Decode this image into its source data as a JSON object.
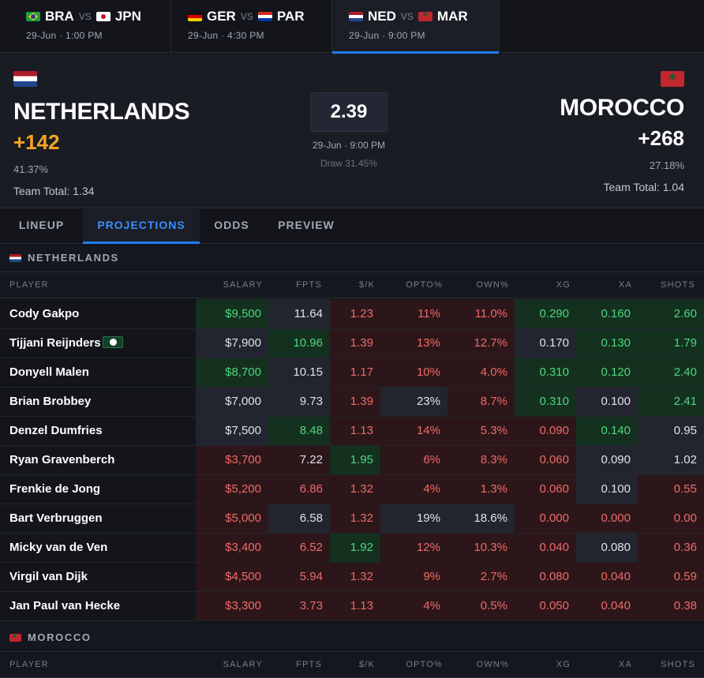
{
  "match_tabs": [
    {
      "home": "BRA",
      "home_flag": "flag-bra",
      "away": "JPN",
      "away_flag": "flag-jpn",
      "vs": "vs",
      "time": "29-Jun · 1:00 PM",
      "active": false
    },
    {
      "home": "GER",
      "home_flag": "flag-ger",
      "away": "PAR",
      "away_flag": "flag-par",
      "vs": "vs",
      "time": "29-Jun · 4:30 PM",
      "active": false
    },
    {
      "home": "NED",
      "home_flag": "flag-ned",
      "away": "MAR",
      "away_flag": "flag-mar",
      "vs": "vs",
      "time": "29-Jun · 9:00 PM",
      "active": true
    }
  ],
  "header": {
    "home": {
      "name": "NETHERLANDS",
      "odds": "+142",
      "pct": "41.37%",
      "team_total": "Team Total: 1.34",
      "odds_color": "#f5a524"
    },
    "away": {
      "name": "MOROCCO",
      "odds": "+268",
      "pct": "27.18%",
      "team_total": "Team Total: 1.04"
    },
    "total": "2.39",
    "time": "29-Jun · 9:00 PM",
    "draw": "Draw 31.45%"
  },
  "tabs": [
    "LINEUP",
    "PROJECTIONS",
    "ODDS",
    "PREVIEW"
  ],
  "active_tab": "PROJECTIONS",
  "sections": {
    "netherlands": "NETHERLANDS",
    "morocco": "MOROCCO"
  },
  "columns": [
    "PLAYER",
    "SALARY",
    "FPTS",
    "$/K",
    "OPTO%",
    "OWN%",
    "XG",
    "XA",
    "SHOTS"
  ],
  "players": [
    {
      "name": "Cody Gakpo",
      "badge": false,
      "salary": "$9,500",
      "fpts": "11.64",
      "pk": "1.23",
      "opto": "11%",
      "own": "11.0%",
      "xg": "0.290",
      "xa": "0.160",
      "shots": "2.60"
    },
    {
      "name": "Tijjani Reijnders",
      "badge": true,
      "salary": "$7,900",
      "fpts": "10.96",
      "pk": "1.39",
      "opto": "13%",
      "own": "12.7%",
      "xg": "0.170",
      "xa": "0.130",
      "shots": "1.79"
    },
    {
      "name": "Donyell Malen",
      "badge": false,
      "salary": "$8,700",
      "fpts": "10.15",
      "pk": "1.17",
      "opto": "10%",
      "own": "4.0%",
      "xg": "0.310",
      "xa": "0.120",
      "shots": "2.40"
    },
    {
      "name": "Brian Brobbey",
      "badge": false,
      "salary": "$7,000",
      "fpts": "9.73",
      "pk": "1.39",
      "opto": "23%",
      "own": "8.7%",
      "xg": "0.310",
      "xa": "0.100",
      "shots": "2.41"
    },
    {
      "name": "Denzel Dumfries",
      "badge": false,
      "salary": "$7,500",
      "fpts": "8.48",
      "pk": "1.13",
      "opto": "14%",
      "own": "5.3%",
      "xg": "0.090",
      "xa": "0.140",
      "shots": "0.95"
    },
    {
      "name": "Ryan Gravenberch",
      "badge": false,
      "salary": "$3,700",
      "fpts": "7.22",
      "pk": "1.95",
      "opto": "6%",
      "own": "8.3%",
      "xg": "0.060",
      "xa": "0.090",
      "shots": "1.02"
    },
    {
      "name": "Frenkie de Jong",
      "badge": false,
      "salary": "$5,200",
      "fpts": "6.86",
      "pk": "1.32",
      "opto": "4%",
      "own": "1.3%",
      "xg": "0.060",
      "xa": "0.100",
      "shots": "0.55"
    },
    {
      "name": "Bart Verbruggen",
      "badge": false,
      "salary": "$5,000",
      "fpts": "6.58",
      "pk": "1.32",
      "opto": "19%",
      "own": "18.6%",
      "xg": "0.000",
      "xa": "0.000",
      "shots": "0.00"
    },
    {
      "name": "Micky van de Ven",
      "badge": false,
      "salary": "$3,400",
      "fpts": "6.52",
      "pk": "1.92",
      "opto": "12%",
      "own": "10.3%",
      "xg": "0.040",
      "xa": "0.080",
      "shots": "0.36"
    },
    {
      "name": "Virgil van Dijk",
      "badge": false,
      "salary": "$4,500",
      "fpts": "5.94",
      "pk": "1.32",
      "opto": "9%",
      "own": "2.7%",
      "xg": "0.080",
      "xa": "0.040",
      "shots": "0.59"
    },
    {
      "name": "Jan Paul van Hecke",
      "badge": false,
      "salary": "$3,300",
      "fpts": "3.73",
      "pk": "1.13",
      "opto": "4%",
      "own": "0.5%",
      "xg": "0.050",
      "xa": "0.040",
      "shots": "0.38"
    }
  ],
  "cell_styles": [
    [
      "g",
      "n",
      "r",
      "r",
      "r",
      "g",
      "g",
      "g"
    ],
    [
      "n",
      "g",
      "r",
      "r",
      "r",
      "n",
      "g",
      "g"
    ],
    [
      "g",
      "n",
      "r",
      "r",
      "r",
      "g",
      "g",
      "g"
    ],
    [
      "n",
      "n",
      "r",
      "n",
      "r",
      "g",
      "n",
      "g"
    ],
    [
      "n",
      "g",
      "r",
      "r",
      "r",
      "r",
      "g",
      "n"
    ],
    [
      "r",
      "rw",
      "g",
      "r",
      "r",
      "r",
      "n",
      "n"
    ],
    [
      "r",
      "r",
      "r",
      "r",
      "r",
      "r",
      "n",
      "r"
    ],
    [
      "r",
      "n",
      "r",
      "n",
      "n",
      "r",
      "r",
      "r"
    ],
    [
      "r",
      "r",
      "g",
      "r",
      "r",
      "r",
      "n",
      "r"
    ],
    [
      "r",
      "r",
      "r",
      "r",
      "r",
      "r",
      "r",
      "r"
    ],
    [
      "r",
      "r",
      "r",
      "r",
      "r",
      "r",
      "r",
      "r"
    ]
  ]
}
